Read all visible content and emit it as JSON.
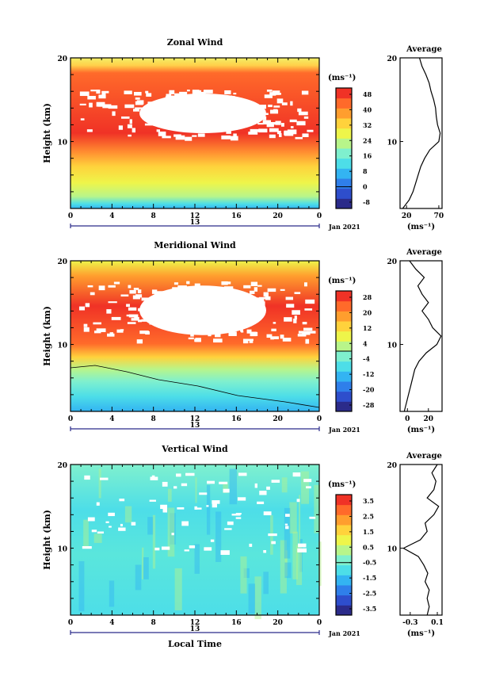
{
  "colors": {
    "band": "#FFFFFF",
    "colorbar": [
      "#2B2B8A",
      "#2E4ECC",
      "#2F7FEA",
      "#33B4F2",
      "#4DDEE8",
      "#7FF0CE",
      "#B8F58A",
      "#EEF54A",
      "#FFD23C",
      "#FF9E2E",
      "#FF6A2A",
      "#F03226"
    ]
  },
  "x_ticks": [
    "0",
    "4",
    "8",
    "12",
    "16",
    "20",
    "0"
  ],
  "date_top": "13",
  "date_label": "Jan 2021",
  "unit": "(ms⁻¹)",
  "avg_title": "Average",
  "xlabel": "Local Time",
  "chart_data": [
    {
      "type": "heatmap",
      "title": "Zonal Wind",
      "ylabel": "Height (km)",
      "ylim": [
        2,
        20
      ],
      "y_ticks": [
        "20",
        "10"
      ],
      "colorbar_ticks": [
        "48",
        "40",
        "32",
        "24",
        "16",
        "8",
        "0",
        "-8"
      ],
      "profile": {
        "title": "Average",
        "xlabel": "(ms⁻¹)",
        "x_ticks": [
          "20",
          "70"
        ],
        "xlim": [
          10,
          75
        ],
        "heights": [
          2,
          3,
          4,
          5,
          6,
          7,
          8,
          9,
          10,
          11,
          12,
          13,
          14,
          15,
          16,
          17,
          18,
          19,
          20
        ],
        "values": [
          14,
          24,
          30,
          34,
          38,
          42,
          48,
          56,
          70,
          72,
          68,
          66,
          65,
          62,
          58,
          55,
          50,
          44,
          40
        ]
      }
    },
    {
      "type": "heatmap",
      "title": "Meridional Wind",
      "ylabel": "Height (km)",
      "ylim": [
        2,
        20
      ],
      "y_ticks": [
        "20",
        "10"
      ],
      "colorbar_ticks": [
        "28",
        "20",
        "12",
        "4",
        "-4",
        "-12",
        "-20",
        "-28"
      ],
      "profile": {
        "title": "Average",
        "xlabel": "(ms⁻¹)",
        "x_ticks": [
          "0",
          "20"
        ],
        "xlim": [
          -7,
          33
        ],
        "heights": [
          2,
          3,
          4,
          5,
          6,
          7,
          8,
          9,
          10,
          11,
          12,
          13,
          14,
          15,
          16,
          17,
          18,
          19,
          20
        ],
        "values": [
          -3,
          -1,
          1,
          3,
          5,
          7,
          11,
          18,
          28,
          32,
          24,
          20,
          14,
          20,
          14,
          10,
          16,
          8,
          2
        ]
      }
    },
    {
      "type": "heatmap",
      "title": "Vertical Wind",
      "ylabel": "Height (km)",
      "ylim": [
        2,
        20
      ],
      "y_ticks": [
        "20",
        "10"
      ],
      "colorbar_ticks": [
        "3.5",
        "2.5",
        "1.5",
        "0.5",
        "-0.5",
        "-1.5",
        "-2.5",
        "-3.5"
      ],
      "profile": {
        "title": "Average",
        "xlabel": "(ms⁻¹)",
        "x_ticks": [
          "-0.3",
          "0.1"
        ],
        "xlim": [
          -0.45,
          0.17
        ],
        "heights": [
          2,
          3,
          4,
          5,
          6,
          7,
          8,
          9,
          10,
          11,
          12,
          13,
          14,
          15,
          16,
          17,
          18,
          19,
          20
        ],
        "values": [
          -0.05,
          -0.02,
          -0.05,
          -0.02,
          -0.08,
          -0.04,
          -0.1,
          -0.18,
          -0.4,
          -0.15,
          -0.05,
          -0.08,
          0.05,
          0.12,
          -0.05,
          0.05,
          0.08,
          0.02,
          0.1
        ]
      }
    }
  ]
}
